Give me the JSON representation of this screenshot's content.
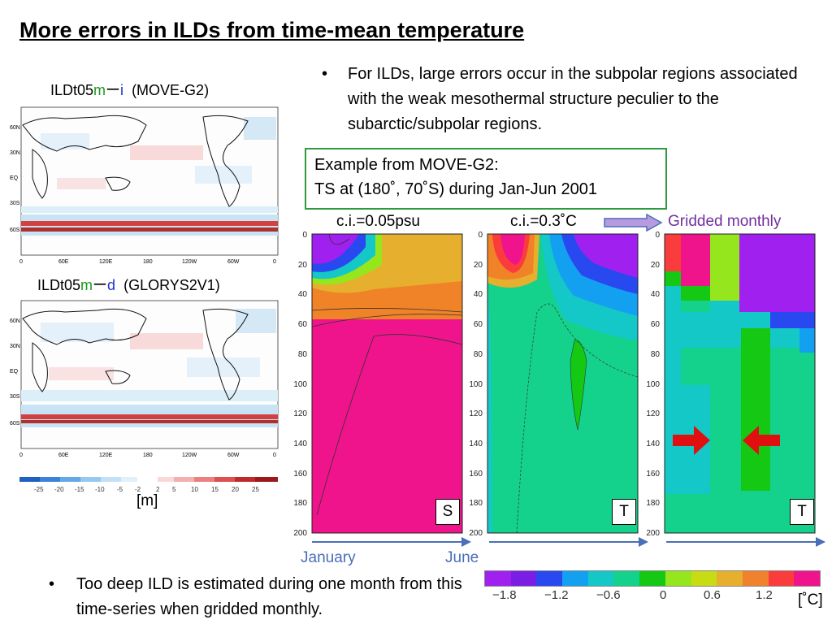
{
  "title": "More errors in ILDs from time-mean temperature",
  "maps": [
    {
      "prefix": "ILDt05",
      "m": "m",
      "dash": "ー",
      "suffix": "i",
      "model": "(MOVE-G2)",
      "lat_ticks": [
        "60N",
        "30N",
        "EQ",
        "30S",
        "60S"
      ],
      "lon_ticks": [
        "0",
        "60E",
        "120E",
        "180",
        "120W",
        "60W",
        "0"
      ]
    },
    {
      "prefix": "ILDt05",
      "m": "m",
      "dash": "ー",
      "suffix": "d",
      "model": "(GLORYS2V1)",
      "lat_ticks": [
        "60N",
        "30N",
        "EQ",
        "30S",
        "60S"
      ],
      "lon_ticks": [
        "0",
        "60E",
        "120E",
        "180",
        "120W",
        "60W",
        "0"
      ]
    }
  ],
  "map_colorbar": {
    "ticks": [
      "-25",
      "-20",
      "-15",
      "-10",
      "-5",
      "-2",
      "2",
      "5",
      "10",
      "15",
      "20",
      "25"
    ],
    "unit": "[m]"
  },
  "bullet1": "For ILDs, large errors occur in the subpolar regions associated with the weak mesothermal structure peculier to the subarctic/subpolar regions.",
  "example_box": {
    "line1": "Example from MOVE-G2:",
    "line2": "TS at (180˚, 70˚S) during Jan-Jun 2001"
  },
  "panels": {
    "ci_s": "c.i.=0.05psu",
    "ci_t": "c.i.=0.3˚C",
    "gridded": "Gridded monthly",
    "depth_ticks": [
      "0",
      "20",
      "40",
      "60",
      "80",
      "100",
      "120",
      "140",
      "160",
      "180",
      "200"
    ],
    "letters": [
      "S",
      "T",
      "T"
    ]
  },
  "time_axis": {
    "start": "January",
    "end": "June"
  },
  "temp_colorbar": {
    "ticks": [
      "−1.8",
      "−1.2",
      "−0.6",
      "0",
      "0.6",
      "1.2"
    ],
    "unit": "[˚C]",
    "colors": [
      "#a020f0",
      "#7a1ee6",
      "#2848f0",
      "#14a0f0",
      "#14c8c8",
      "#14d28c",
      "#14c814",
      "#96e61e",
      "#c8dc14",
      "#e6af2d",
      "#f0822d",
      "#fa3c3c",
      "#f0148c"
    ]
  },
  "bullet2": "Too deep ILD is estimated during one month from this time-series when gridded monthly.",
  "colors": {
    "title_underline": "#000000",
    "box_border": "#2e9a3e",
    "arrow_blue": "#4a6eb8",
    "arrow_purple": "#9966cc",
    "red_arrow": "#e01010"
  }
}
